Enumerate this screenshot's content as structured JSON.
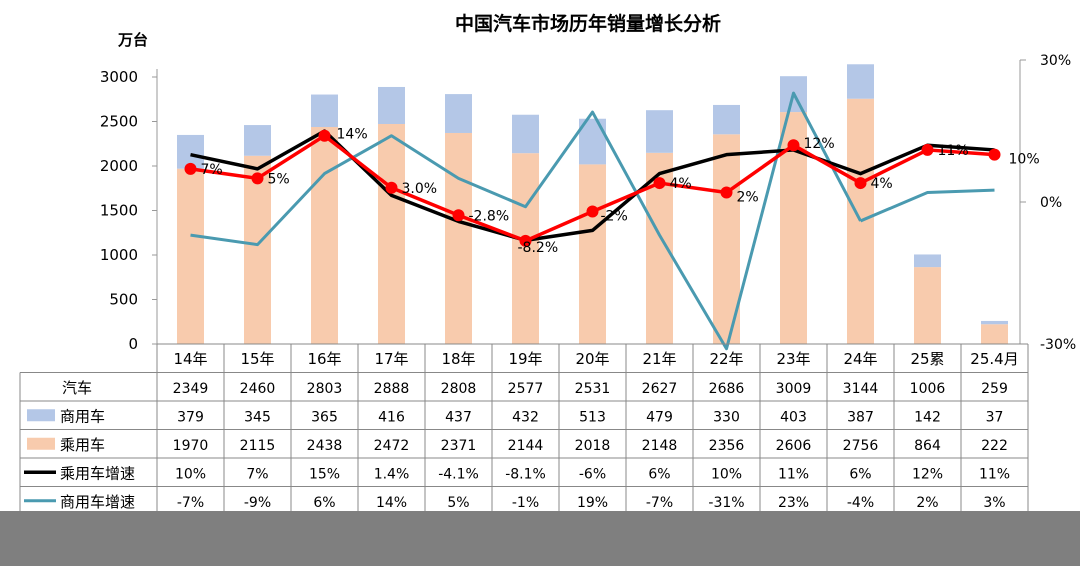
{
  "chart_data": {
    "type": "bar",
    "title": "中国汽车市场历年销量增长分析",
    "ylabel_left": "万台",
    "y_left_ticks": [
      "3000",
      "2500",
      "2000",
      "1500",
      "1000",
      "500",
      "0"
    ],
    "y_left_range": [
      0,
      3000
    ],
    "y_right_ticks": [
      "30%",
      "0%",
      "-30%"
    ],
    "y_right_range": [
      -30,
      30
    ],
    "categories": [
      "14年",
      "15年",
      "16年",
      "17年",
      "18年",
      "19年",
      "20年",
      "21年",
      "22年",
      "23年",
      "24年",
      "25累",
      "25.4月"
    ],
    "colors": {
      "commercial": "#b4c7e7",
      "passenger": "#f8cbad",
      "passenger_growth": "#000000",
      "commercial_growth": "#4a9ab0",
      "total_growth": "#ff0000",
      "total_growth_marker": "#ff0000"
    },
    "series": [
      {
        "name": "汽车",
        "values": [
          2349,
          2460,
          2803,
          2888,
          2808,
          2577,
          2531,
          2627,
          2686,
          3009,
          3144,
          1006,
          259
        ]
      },
      {
        "name": "商用车",
        "values": [
          379,
          345,
          365,
          416,
          437,
          432,
          513,
          479,
          330,
          403,
          387,
          142,
          37
        ]
      },
      {
        "name": "乘用车",
        "values": [
          1970,
          2115,
          2438,
          2472,
          2371,
          2144,
          2018,
          2148,
          2356,
          2606,
          2756,
          864,
          222
        ]
      },
      {
        "name": "乘用车增速",
        "values": [
          10,
          7,
          15,
          1.4,
          -4.1,
          -8.1,
          -6,
          6,
          10,
          11,
          6,
          12,
          11
        ]
      },
      {
        "name": "商用车增速",
        "values": [
          -7,
          -9,
          6,
          14,
          5,
          -1,
          19,
          -7,
          -31,
          23,
          -4,
          2,
          2.5
        ]
      },
      {
        "name": "汽车增速",
        "values": [
          7,
          5,
          14,
          3.0,
          -2.8,
          -8.2,
          -2,
          4,
          2,
          12,
          4,
          11,
          10
        ]
      }
    ],
    "total_growth_labels": [
      "7%",
      "5%",
      "14%",
      "3.0%",
      "-2.8%",
      "-8.2%",
      "-2%",
      "4%",
      "2%",
      "12%",
      "4%",
      "11%",
      "10%"
    ],
    "table": {
      "rows": [
        {
          "label": "汽车",
          "swatch": "none",
          "cells": [
            "2349",
            "2460",
            "2803",
            "2888",
            "2808",
            "2577",
            "2531",
            "2627",
            "2686",
            "3009",
            "3144",
            "1006",
            "259"
          ]
        },
        {
          "label": "商用车",
          "swatch": "bar-commercial",
          "cells": [
            "379",
            "345",
            "365",
            "416",
            "437",
            "432",
            "513",
            "479",
            "330",
            "403",
            "387",
            "142",
            "37"
          ]
        },
        {
          "label": "乘用车",
          "swatch": "bar-passenger",
          "cells": [
            "1970",
            "2115",
            "2438",
            "2472",
            "2371",
            "2144",
            "2018",
            "2148",
            "2356",
            "2606",
            "2756",
            "864",
            "222"
          ]
        },
        {
          "label": "乘用车增速",
          "swatch": "line-black",
          "cells": [
            "10%",
            "7%",
            "15%",
            "1.4%",
            "-4.1%",
            "-8.1%",
            "-6%",
            "6%",
            "10%",
            "11%",
            "6%",
            "12%",
            "11%"
          ]
        },
        {
          "label": "商用车增速",
          "swatch": "line-teal",
          "cells": [
            "-7%",
            "-9%",
            "6%",
            "14%",
            "5%",
            "-1%",
            "19%",
            "-7%",
            "-31%",
            "23%",
            "-4%",
            "2%",
            "3%"
          ]
        }
      ]
    }
  }
}
